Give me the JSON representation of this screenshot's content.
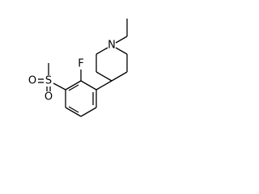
{
  "atoms": [
    {
      "label": "N"
    },
    {
      "label": "F"
    },
    {
      "label": "S"
    },
    {
      "label": "O"
    },
    {
      "label": "O"
    }
  ]
}
